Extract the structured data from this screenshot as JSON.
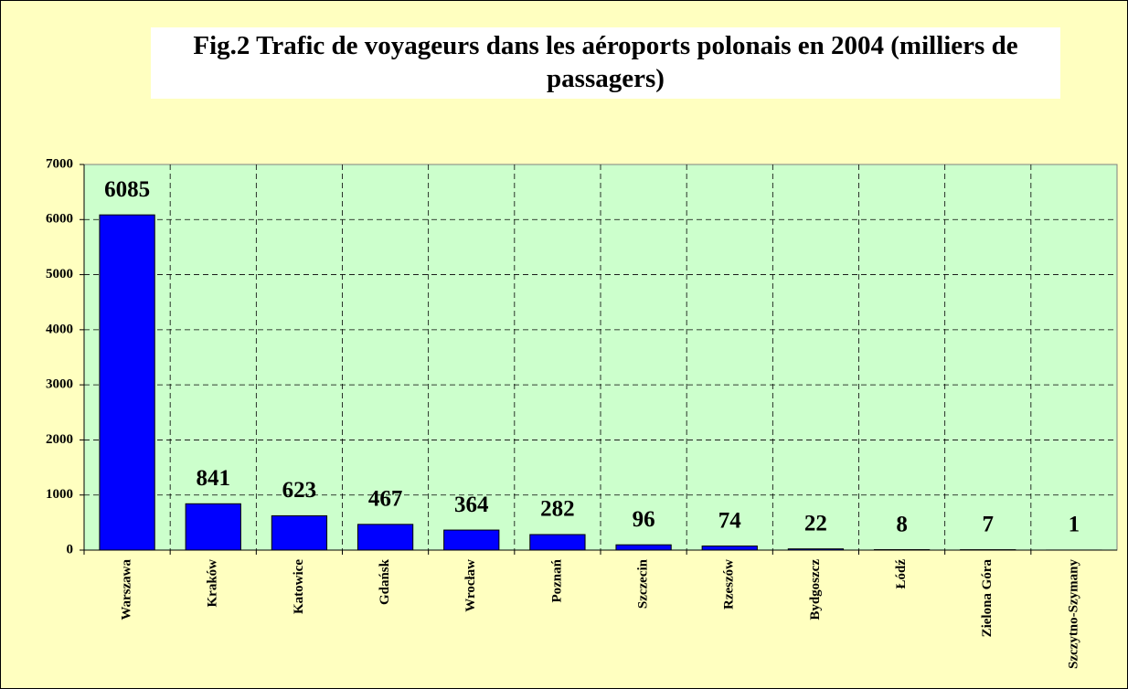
{
  "chart_data": {
    "type": "bar",
    "title": "Fig.2 Trafic de voyageurs dans les aéroports polonais en 2004 (milliers de passagers)",
    "categories": [
      "Warszawa",
      "Kraków",
      "Katowice",
      "Gdańsk",
      "Wrocław",
      "Poznań",
      "Szczecin",
      "Rzeszów",
      "Bydgoszcz",
      "Łódź",
      "Zielona Góra",
      "Szczytno-Szymany"
    ],
    "values": [
      6085,
      841,
      623,
      467,
      364,
      282,
      96,
      74,
      22,
      8,
      7,
      1
    ],
    "color": "#0000ff",
    "ylim": [
      0,
      7000
    ],
    "yticks": [
      0,
      1000,
      2000,
      3000,
      4000,
      5000,
      6000,
      7000
    ],
    "grid": true
  }
}
